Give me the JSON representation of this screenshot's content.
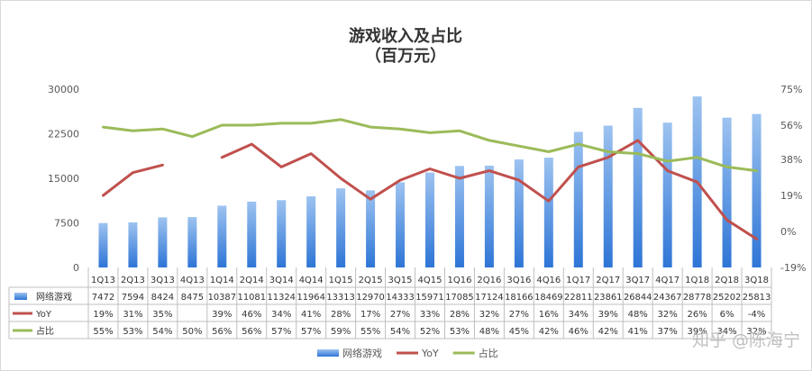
{
  "chart_data": {
    "type": "bar",
    "title": "游戏收入及占比",
    "subtitle": "（百万元）",
    "categories": [
      "1Q13",
      "2Q13",
      "3Q13",
      "4Q13",
      "1Q14",
      "2Q14",
      "3Q14",
      "4Q14",
      "1Q15",
      "2Q15",
      "3Q15",
      "4Q15",
      "1Q16",
      "2Q16",
      "3Q16",
      "4Q16",
      "1Q17",
      "2Q17",
      "3Q17",
      "4Q17",
      "1Q18",
      "2Q18",
      "3Q18"
    ],
    "series": [
      {
        "name": "网络游戏",
        "type": "bar",
        "axis": "left",
        "values": [
          7472,
          7594,
          8424,
          8475,
          10387,
          11081,
          11324,
          11964,
          13313,
          12970,
          14333,
          15971,
          17085,
          17124,
          18166,
          18469,
          22811,
          23861,
          26844,
          24367,
          28778,
          25202,
          25813
        ],
        "table_values": [
          "7472",
          "7594",
          "8424",
          "8475",
          "10387",
          "11081",
          "11324",
          "11964",
          "13313",
          "12970",
          "14333",
          "15971",
          "17085",
          "17124",
          "18166",
          "18469",
          "22811",
          "23861",
          "26844",
          "24367",
          "28778",
          "25202",
          "25813"
        ]
      },
      {
        "name": "YoY",
        "type": "line",
        "axis": "right",
        "values": [
          19,
          31,
          35,
          null,
          39,
          46,
          34,
          41,
          28,
          17,
          27,
          33,
          28,
          32,
          27,
          16,
          34,
          39,
          48,
          32,
          26,
          6,
          -4
        ],
        "table_values": [
          "19%",
          "31%",
          "35%",
          "",
          "39%",
          "46%",
          "34%",
          "41%",
          "28%",
          "17%",
          "27%",
          "33%",
          "28%",
          "32%",
          "27%",
          "16%",
          "34%",
          "39%",
          "48%",
          "32%",
          "26%",
          "6%",
          "-4%"
        ]
      },
      {
        "name": "占比",
        "type": "line",
        "axis": "right",
        "values": [
          55,
          53,
          54,
          50,
          56,
          56,
          57,
          57,
          59,
          55,
          54,
          52,
          53,
          48,
          45,
          42,
          46,
          42,
          41,
          37,
          39,
          34,
          32
        ],
        "table_values": [
          "55%",
          "53%",
          "54%",
          "50%",
          "56%",
          "56%",
          "57%",
          "57%",
          "59%",
          "55%",
          "54%",
          "52%",
          "53%",
          "48%",
          "45%",
          "42%",
          "46%",
          "42%",
          "41%",
          "37%",
          "39%",
          "34%",
          "32%"
        ]
      }
    ],
    "left_axis": {
      "ylim": [
        0,
        30000
      ],
      "ticks": [
        "0",
        "7500",
        "15000",
        "22500",
        "30000"
      ]
    },
    "right_axis": {
      "ylim": [
        -19,
        75
      ],
      "ticks": [
        "-19%",
        "0%",
        "19%",
        "38%",
        "56%",
        "75%"
      ]
    },
    "grid": false,
    "legend": "bottom",
    "data_table": true,
    "colors": {
      "bar_top": "#9dc3f0",
      "bar_bottom": "#2e75d6",
      "yoy": "#c0504d",
      "share": "#9bbb59"
    }
  },
  "watermark": "知乎 @陈海宁"
}
